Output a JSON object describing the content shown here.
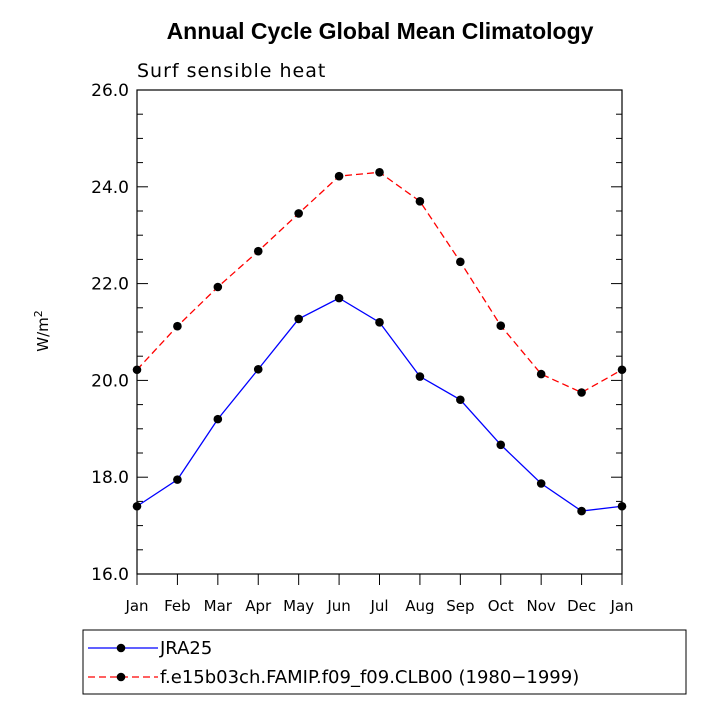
{
  "chart_data": {
    "type": "line",
    "title": "Annual Cycle Global Mean Climatology",
    "subtitle": "Surf sensible heat",
    "xlabel": "",
    "ylabel": "W/m",
    "ylabel_superscript": "2",
    "ylim": [
      16.0,
      26.0
    ],
    "yticks": [
      16.0,
      18.0,
      20.0,
      22.0,
      24.0,
      26.0
    ],
    "ytick_labels": [
      "16.0",
      "18.0",
      "20.0",
      "22.0",
      "24.0",
      "26.0"
    ],
    "categories": [
      "Jan",
      "Feb",
      "Mar",
      "Apr",
      "May",
      "Jun",
      "Jul",
      "Aug",
      "Sep",
      "Oct",
      "Nov",
      "Dec",
      "Jan"
    ],
    "grid": false,
    "legend_position": "bottom",
    "series": [
      {
        "name": "JRA25",
        "color": "#0000ff",
        "dash": "solid",
        "values": [
          17.4,
          17.95,
          19.2,
          20.23,
          21.27,
          21.7,
          21.2,
          20.08,
          19.6,
          18.67,
          17.87,
          17.3,
          17.4
        ]
      },
      {
        "name": "f.e15b03ch.FAMIP.f09_f09.CLB00 (1980−1999)",
        "color": "#ff0000",
        "dash": "dashed",
        "values": [
          20.22,
          21.12,
          21.93,
          22.67,
          23.45,
          24.22,
          24.3,
          23.7,
          22.45,
          21.13,
          20.13,
          19.75,
          20.22
        ]
      }
    ]
  }
}
